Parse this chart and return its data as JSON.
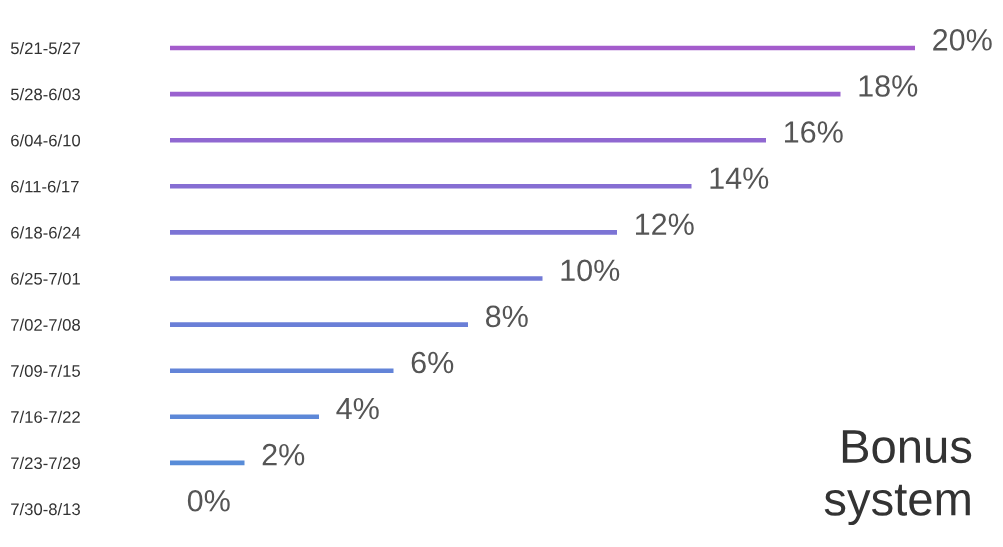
{
  "chart_data": {
    "type": "bar",
    "orientation": "horizontal",
    "title": "Bonus system",
    "categories": [
      "5/21-5/27",
      "5/28-6/03",
      "6/04-6/10",
      "6/11-6/17",
      "6/18-6/24",
      "6/25-7/01",
      "7/02-7/08",
      "7/09-7/15",
      "7/16-7/22",
      "7/23-7/29",
      "7/30-8/13"
    ],
    "values": [
      20,
      18,
      16,
      14,
      12,
      10,
      8,
      6,
      4,
      2,
      0
    ],
    "colors": [
      "#a45ccc",
      "#9a62cf",
      "#9068d1",
      "#866ed3",
      "#7c74d5",
      "#727ad6",
      "#6a7fd7",
      "#6384d8",
      "#5d88d8",
      "#588cd8",
      "#5490d8"
    ],
    "value_labels": [
      "20%",
      "18%",
      "16%",
      "14%",
      "12%",
      "10%",
      "8%",
      "6%",
      "4%",
      "2%",
      "0%"
    ],
    "grid": false,
    "legend": false
  }
}
